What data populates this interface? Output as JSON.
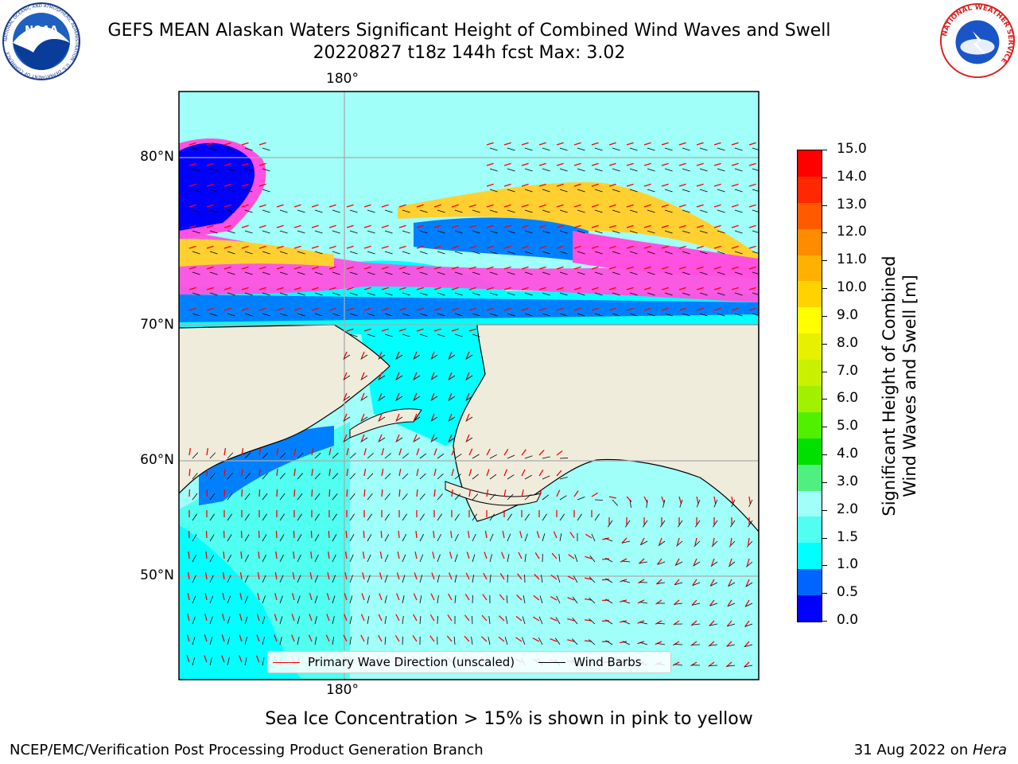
{
  "header": {
    "title_line1": "GEFS MEAN Alaskan Waters Significant Height of Combined Wind Waves and Swell",
    "title_line2": "20220827 t18z 144h fcst   Max: 3.02"
  },
  "logos": {
    "noaa": {
      "text": "NOAA",
      "ring_text": "NATIONAL OCEANIC AND ATMOSPHERIC ADMINISTRATION · U.S. DEPARTMENT OF COMMERCE"
    },
    "nws": {
      "ring_text": "NATIONAL WEATHER SERVICE"
    }
  },
  "map": {
    "lon_labels": [
      "180°",
      "180°"
    ],
    "lat_labels": [
      "80°N",
      "70°N",
      "60°N",
      "50°N"
    ],
    "legend": {
      "wave_label": "Primary Wave Direction (unscaled)",
      "wave_color": "#ff0000",
      "barb_label": "Wind Barbs",
      "barb_color": "#000000"
    },
    "colors": {
      "land": "#efecdc",
      "ocean_light": "#a0fff8",
      "ocean_mid": "#50fff0",
      "cyan": "#00ffff",
      "blue": "#0080ff",
      "deep_blue": "#0000ff",
      "ice_pink": "#ff50e0",
      "ice_yellow": "#ffd030"
    }
  },
  "colorbar": {
    "label_line1": "Significant Height of Combined",
    "label_line2": "Wind Waves and Swell [m]",
    "ticks": [
      "0.0",
      "0.5",
      "1.0",
      "1.5",
      "2.0",
      "3.0",
      "4.0",
      "5.0",
      "6.0",
      "7.0",
      "8.0",
      "9.0",
      "10.0",
      "11.0",
      "12.0",
      "13.0",
      "14.0",
      "15.0"
    ],
    "colors": [
      "#0000ff",
      "#0064ff",
      "#00ffff",
      "#50fff0",
      "#a0fff8",
      "#50f080",
      "#00e000",
      "#50f000",
      "#a0f000",
      "#c8f000",
      "#e6f000",
      "#ffff00",
      "#ffd200",
      "#ffb000",
      "#ff8c00",
      "#ff5a00",
      "#ff2800",
      "#ff0000"
    ]
  },
  "note": "Sea Ice Concentration > 15% is shown in pink to yellow",
  "footer": {
    "left": "NCEP/EMC/Verification Post Processing Product Generation Branch",
    "right_date": "31 Aug 2022 on ",
    "right_host": "Hera"
  }
}
